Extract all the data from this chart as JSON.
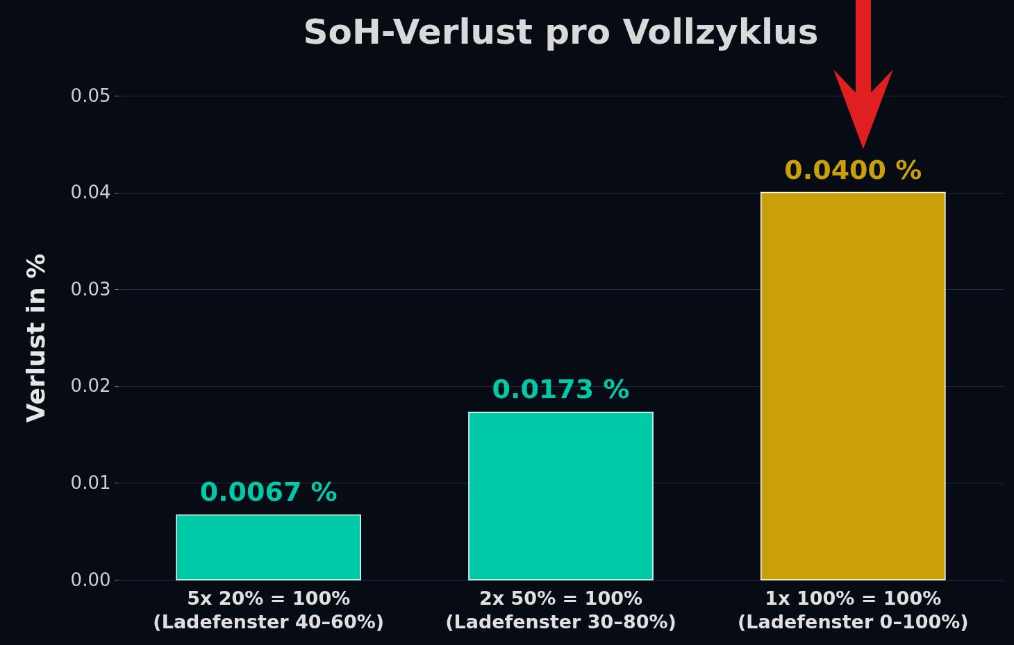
{
  "chart_data": {
    "type": "bar",
    "title": "SoH-Verlust pro Vollzyklus",
    "ylabel": "Verlust in %",
    "categories": [
      "5x 20% = 100%\n(Ladefenster 40–60%)",
      "2x 50% = 100%\n(Ladefenster 30–80%)",
      "1x 100% = 100%\n(Ladefenster 0–100%)"
    ],
    "values": [
      0.0067,
      0.0173,
      0.04
    ],
    "colors": [
      "#00c9a7",
      "#00c9a7",
      "#c9a00a"
    ],
    "value_labels": [
      "0.0067 %",
      "0.0173 %",
      "0.0400 %"
    ],
    "ylim": [
      0,
      0.05
    ],
    "yticks": [
      {
        "value": 0,
        "label": "0.00"
      },
      0.01,
      0.02,
      0.03,
      0.04,
      0.05
    ],
    "grid": "y"
  }
}
